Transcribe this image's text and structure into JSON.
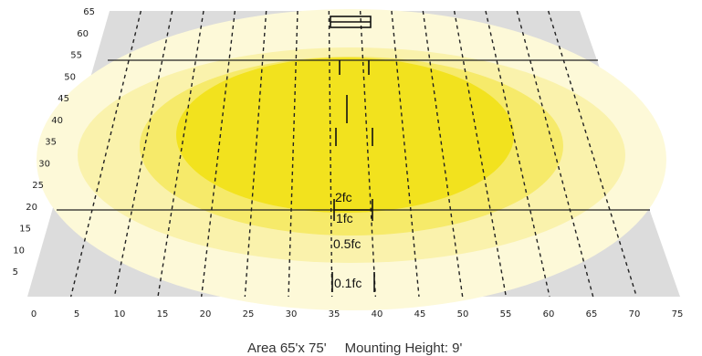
{
  "caption": {
    "area": "Area 65'x 75'",
    "mounting_height": "Mounting Height: 9'"
  },
  "x_ticks": [
    "0",
    "5",
    "10",
    "15",
    "20",
    "25",
    "30",
    "35",
    "40",
    "45",
    "50",
    "55",
    "60",
    "65",
    "70",
    "75"
  ],
  "y_ticks": [
    "5",
    "10",
    "15",
    "20",
    "25",
    "30",
    "35",
    "40",
    "45",
    "50",
    "55",
    "60",
    "65"
  ],
  "contours": [
    {
      "label": "2fc",
      "fill": "#f2e21e"
    },
    {
      "label": "1fc",
      "fill": "#f6ea6a"
    },
    {
      "label": "0.5fc",
      "fill": "#faf2ac"
    },
    {
      "label": "0.1fc",
      "fill": "#fdf9d8"
    }
  ],
  "background_color": "#dcdcdc"
}
